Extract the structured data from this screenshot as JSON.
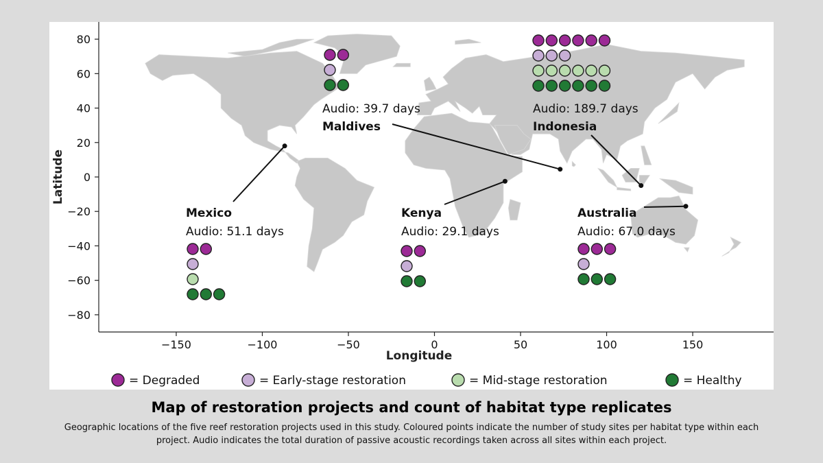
{
  "map": {
    "x_axis": {
      "label": "Longitude",
      "ticks": [
        {
          "value": -150,
          "label": "−150"
        },
        {
          "value": -100,
          "label": "−100"
        },
        {
          "value": -50,
          "label": "−50"
        },
        {
          "value": 0,
          "label": "0"
        },
        {
          "value": 50,
          "label": "50"
        },
        {
          "value": 100,
          "label": "100"
        },
        {
          "value": 150,
          "label": "150"
        }
      ],
      "range": [
        -195,
        197
      ]
    },
    "y_axis": {
      "label": "Latitude",
      "ticks": [
        {
          "value": 80,
          "label": "80"
        },
        {
          "value": 60,
          "label": "60"
        },
        {
          "value": 40,
          "label": "40"
        },
        {
          "value": 20,
          "label": "20"
        },
        {
          "value": 0,
          "label": "0"
        },
        {
          "value": -20,
          "label": "−20"
        },
        {
          "value": -40,
          "label": "−40"
        },
        {
          "value": -60,
          "label": "−60"
        },
        {
          "value": -80,
          "label": "−80"
        }
      ],
      "range": [
        -90,
        90
      ]
    },
    "land_color": "#c8c8c8",
    "grid": false,
    "projects": [
      {
        "name": "Mexico",
        "audio": "Audio: 51.1 days",
        "lon": -87,
        "lat": 18,
        "counts": {
          "degraded": 2,
          "early": 1,
          "mid": 1,
          "healthy": 3
        }
      },
      {
        "name": "Maldives",
        "audio": "Audio: 39.7 days",
        "lon": 73,
        "lat": 4.5,
        "counts": {
          "degraded": 2,
          "early": 1,
          "mid": 0,
          "healthy": 2
        }
      },
      {
        "name": "Kenya",
        "audio": "Audio: 29.1 days",
        "lon": 41,
        "lat": -2.5,
        "counts": {
          "degraded": 2,
          "early": 1,
          "mid": 0,
          "healthy": 2
        }
      },
      {
        "name": "Indonesia",
        "audio": "Audio: 189.7 days",
        "lon": 120,
        "lat": -5,
        "counts": {
          "degraded": 6,
          "early": 3,
          "mid": 6,
          "healthy": 6
        }
      },
      {
        "name": "Australia",
        "audio": "Audio: 67.0 days",
        "lon": 146,
        "lat": -17,
        "counts": {
          "degraded": 3,
          "early": 1,
          "mid": 0,
          "healthy": 3
        }
      }
    ]
  },
  "legend": {
    "items": [
      {
        "key": "degraded",
        "label": "= Degraded",
        "color": "#9c2a96"
      },
      {
        "key": "early",
        "label": "= Early-stage restoration",
        "color": "#c7aed6"
      },
      {
        "key": "mid",
        "label": "= Mid-stage restoration",
        "color": "#b9dcae"
      },
      {
        "key": "healthy",
        "label": "= Healthy",
        "color": "#217a35"
      }
    ]
  },
  "caption": {
    "title": "Map of restoration projects and count of habitat type replicates",
    "text": "Geographic locations of the five reef restoration projects used in this study. Coloured points indicate the number of study sites per habitat type within each project. Audio indicates the total duration of passive acoustic recordings taken across all sites within each project."
  }
}
